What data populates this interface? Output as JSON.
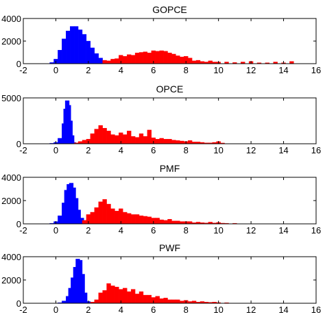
{
  "colors": {
    "blue": "#0000ff",
    "red": "#ff0000",
    "axes": "#000000",
    "background": "#ffffff"
  },
  "chart_data": [
    {
      "type": "bar",
      "title": "GOPCE",
      "xlabel": "",
      "ylabel": "",
      "xlim": [
        -2,
        16
      ],
      "ylim": [
        0,
        4000
      ],
      "xticks": [
        "-2",
        "0",
        "2",
        "4",
        "6",
        "8",
        "10",
        "12",
        "14",
        "16"
      ],
      "yticks": [
        "0",
        "2000",
        "4000"
      ],
      "grid": false,
      "series": [
        {
          "color": "blue",
          "x": [
            -0.25,
            0,
            0.25,
            0.5,
            0.75,
            1.0,
            1.25,
            1.5,
            1.75,
            2.0,
            2.25,
            2.5,
            2.75,
            3.0
          ],
          "values": [
            100,
            400,
            1200,
            2200,
            2900,
            3300,
            3300,
            3000,
            2600,
            2000,
            1400,
            900,
            500,
            200
          ]
        },
        {
          "color": "red",
          "x": [
            3.0,
            3.25,
            3.5,
            3.75,
            4.0,
            4.25,
            4.5,
            4.75,
            5.0,
            5.25,
            5.5,
            5.75,
            6.0,
            6.25,
            6.5,
            6.75,
            7.0,
            7.25,
            7.5,
            7.75,
            8.0,
            8.25,
            8.5,
            8.75,
            9.0,
            9.25,
            9.5,
            9.75,
            10.0,
            10.5,
            11.0,
            11.5,
            12.0,
            12.5,
            13.0,
            13.5,
            14.0,
            14.5
          ],
          "values": [
            300,
            250,
            400,
            450,
            750,
            650,
            800,
            750,
            950,
            1000,
            1050,
            950,
            1150,
            1100,
            1150,
            1100,
            950,
            850,
            700,
            600,
            650,
            500,
            250,
            300,
            200,
            150,
            250,
            150,
            150,
            150,
            100,
            150,
            200,
            80,
            80,
            150,
            80,
            200
          ]
        }
      ]
    },
    {
      "type": "bar",
      "title": "OPCE",
      "xlabel": "",
      "ylabel": "",
      "xlim": [
        -2,
        16
      ],
      "ylim": [
        0,
        5000
      ],
      "xticks": [
        "-2",
        "0",
        "2",
        "4",
        "6",
        "8",
        "10",
        "12",
        "14",
        "16"
      ],
      "yticks": [
        "0",
        "5000"
      ],
      "grid": false,
      "series": [
        {
          "color": "blue",
          "x": [
            -0.25,
            0,
            0.25,
            0.5,
            0.6,
            0.7,
            0.8,
            0.9,
            1.0,
            1.1
          ],
          "values": [
            50,
            150,
            600,
            2200,
            3800,
            4700,
            4200,
            2500,
            900,
            150
          ]
        },
        {
          "color": "red",
          "x": [
            1.25,
            1.5,
            1.75,
            2.0,
            2.25,
            2.5,
            2.75,
            3.0,
            3.25,
            3.5,
            3.75,
            4.0,
            4.25,
            4.5,
            4.75,
            5.0,
            5.25,
            5.5,
            5.75,
            6.0,
            6.25,
            6.5,
            6.75,
            7.0,
            7.25,
            7.5,
            7.75,
            8.0,
            8.25,
            8.5,
            8.75,
            9.0,
            9.25,
            9.5,
            9.75,
            10.0,
            10.25
          ],
          "values": [
            100,
            250,
            400,
            500,
            1100,
            1600,
            2000,
            1700,
            1400,
            1000,
            900,
            1200,
            1000,
            1400,
            800,
            700,
            1100,
            800,
            1500,
            650,
            500,
            600,
            500,
            500,
            400,
            350,
            300,
            250,
            350,
            200,
            200,
            150,
            100,
            100,
            150,
            250,
            80
          ]
        }
      ]
    },
    {
      "type": "bar",
      "title": "PMF",
      "xlabel": "",
      "ylabel": "",
      "xlim": [
        -2,
        16
      ],
      "ylim": [
        0,
        4000
      ],
      "xticks": [
        "-2",
        "0",
        "2",
        "4",
        "6",
        "8",
        "10",
        "12",
        "14",
        "16"
      ],
      "yticks": [
        "0",
        "2000",
        "4000"
      ],
      "grid": false,
      "series": [
        {
          "color": "blue",
          "x": [
            -0.25,
            0,
            0.25,
            0.5,
            0.65,
            0.8,
            0.95,
            1.1,
            1.25,
            1.4,
            1.6,
            1.8
          ],
          "values": [
            50,
            200,
            700,
            1800,
            2900,
            3400,
            3500,
            3100,
            2200,
            1200,
            500,
            150
          ]
        },
        {
          "color": "red",
          "x": [
            1.75,
            2.0,
            2.25,
            2.5,
            2.75,
            3.0,
            3.25,
            3.5,
            3.75,
            4.0,
            4.25,
            4.5,
            4.75,
            5.0,
            5.25,
            5.5,
            5.75,
            6.0,
            6.25,
            6.5,
            6.75,
            7.0,
            7.25,
            7.5,
            7.75,
            8.0,
            8.25,
            8.5,
            8.75,
            9.0,
            9.25,
            9.5,
            9.75,
            10.0,
            10.25,
            10.5,
            11.0
          ],
          "values": [
            300,
            800,
            1000,
            1400,
            1900,
            2100,
            1700,
            1300,
            1100,
            1300,
            1000,
            900,
            800,
            800,
            700,
            650,
            600,
            500,
            500,
            350,
            300,
            400,
            250,
            250,
            200,
            200,
            200,
            100,
            150,
            100,
            80,
            150,
            80,
            120,
            60,
            50,
            50
          ]
        }
      ]
    },
    {
      "type": "bar",
      "title": "PWF",
      "xlabel": "",
      "ylabel": "",
      "xlim": [
        -2,
        16
      ],
      "ylim": [
        0,
        4000
      ],
      "xticks": [
        "-2",
        "0",
        "2",
        "4",
        "6",
        "8",
        "10",
        "12",
        "14",
        "16"
      ],
      "yticks": [
        "0",
        "2000",
        "4000"
      ],
      "grid": false,
      "series": [
        {
          "color": "blue",
          "x": [
            0.25,
            0.5,
            0.75,
            0.9,
            1.05,
            1.2,
            1.35,
            1.5,
            1.65,
            1.8,
            2.0
          ],
          "values": [
            50,
            200,
            600,
            1300,
            2200,
            3100,
            3800,
            3700,
            2500,
            900,
            150
          ]
        },
        {
          "color": "red",
          "x": [
            2.25,
            2.5,
            2.75,
            3.0,
            3.25,
            3.5,
            3.75,
            4.0,
            4.25,
            4.5,
            4.75,
            5.0,
            5.25,
            5.5,
            5.75,
            6.0,
            6.25,
            6.5,
            6.75,
            7.0,
            7.25,
            7.5,
            7.75,
            8.0,
            8.25,
            8.5,
            8.75,
            9.0,
            9.25,
            9.5,
            9.75,
            10.0,
            10.5
          ],
          "values": [
            100,
            300,
            900,
            1100,
            1700,
            1500,
            1400,
            1200,
            1300,
            1000,
            1200,
            800,
            1000,
            700,
            700,
            500,
            600,
            400,
            450,
            300,
            300,
            300,
            200,
            250,
            150,
            200,
            100,
            150,
            100,
            80,
            100,
            60,
            50
          ]
        }
      ]
    }
  ]
}
